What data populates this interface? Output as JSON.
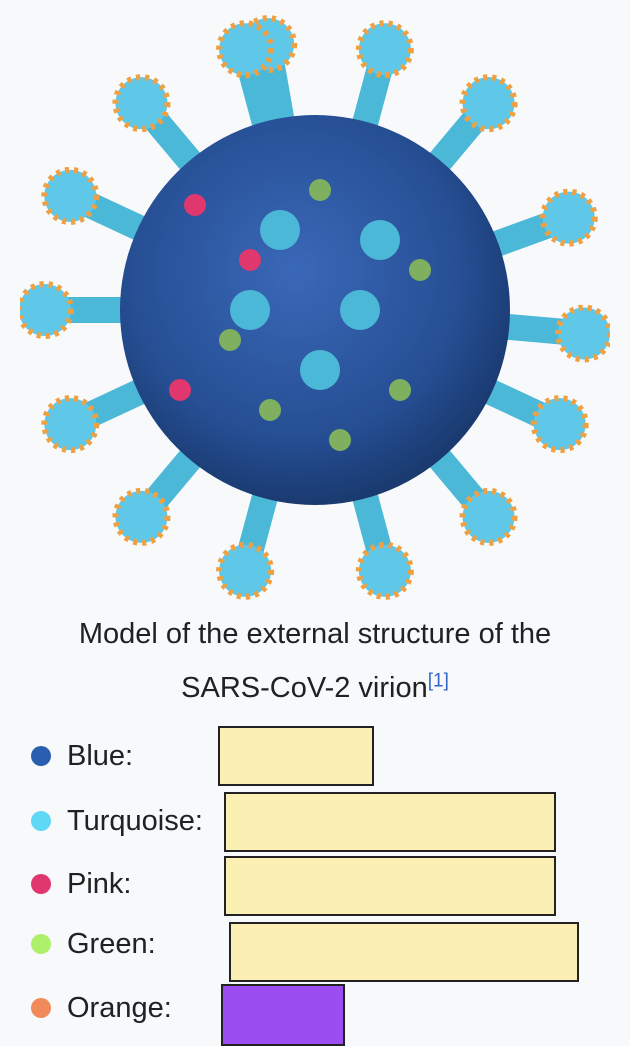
{
  "caption": {
    "line1": "Model of the external structure of the",
    "line2": "SARS-CoV-2 virion",
    "ref": "[1]"
  },
  "legend": [
    {
      "label": "Blue:",
      "dot_color": "#2a5fb0",
      "box_color": "#fcefb4"
    },
    {
      "label": "Turquoise:",
      "dot_color": "#5fd8f5",
      "box_color": "#fcefb4"
    },
    {
      "label": "Pink:",
      "dot_color": "#e0386e",
      "box_color": "#fcefb4"
    },
    {
      "label": "Green:",
      "dot_color": "#aef06a",
      "box_color": "#fcefb4"
    },
    {
      "label": "Orange:",
      "dot_color": "#f08a5a",
      "box_color": "#9b4df2"
    }
  ]
}
